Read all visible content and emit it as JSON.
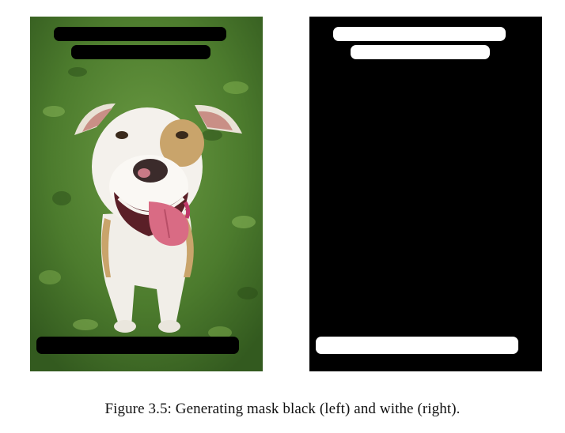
{
  "figure": {
    "caption": "Figure 3.5: Generating mask black (left) and withe (right)."
  },
  "left_image": {
    "kind": "photo-with-black-text-mask",
    "subject": "dog-photo",
    "mask_color": "#000000"
  },
  "right_image": {
    "kind": "binary-mask",
    "background_color": "#000000",
    "mask_color": "#ffffff"
  }
}
